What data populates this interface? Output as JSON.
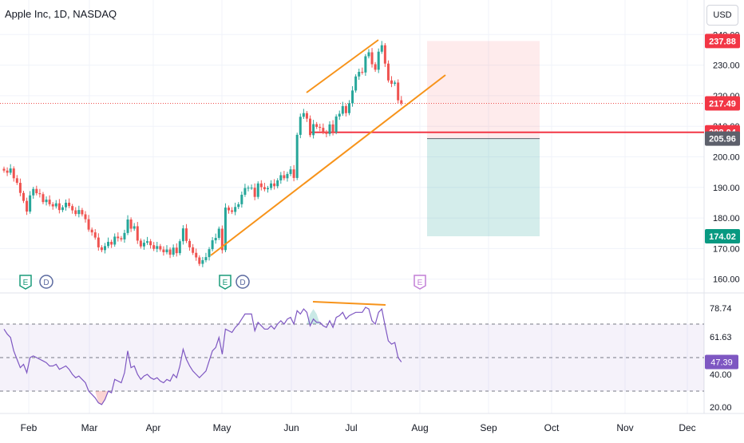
{
  "header": {
    "title": "Apple Inc, 1D, NASDAQ",
    "currency": "USD"
  },
  "colors": {
    "up": "#26a69a",
    "down": "#ef5350",
    "trend": "#f7931a",
    "rsi": "#7e57c2",
    "stop": "#f23645",
    "entry": "#f23645",
    "target_zone": "#26a69a",
    "stop_zone": "#f23645"
  },
  "chart_data": [
    {
      "type": "candlestick",
      "title": "Apple Inc, 1D, NASDAQ",
      "x_tick_labels": [
        "Feb",
        "Mar",
        "Apr",
        "May",
        "Jun",
        "Jul",
        "Aug",
        "Sep",
        "Oct",
        "Nov",
        "Dec"
      ],
      "y_tick_labels": [
        "160.00",
        "170.00",
        "180.00",
        "190.00",
        "200.00",
        "210.00",
        "220.00",
        "230.00",
        "240.00"
      ],
      "ylim": [
        155,
        242
      ],
      "closes": [
        195.5,
        194.8,
        196.2,
        193.0,
        191.5,
        188.2,
        185.6,
        182.1,
        187.4,
        189.5,
        188.1,
        187.8,
        185.2,
        186.0,
        184.5,
        183.8,
        184.8,
        182.6,
        183.5,
        185.0,
        183.9,
        182.5,
        181.3,
        182.6,
        181.2,
        179.6,
        176.2,
        175.3,
        173.6,
        170.4,
        169.5,
        170.8,
        172.2,
        171.3,
        173.9,
        173.4,
        173.0,
        175.1,
        179.5,
        176.5,
        177.3,
        172.6,
        170.7,
        171.9,
        172.4,
        171.1,
        169.9,
        170.8,
        169.7,
        168.8,
        169.7,
        168.0,
        170.3,
        168.5,
        172.4,
        176.6,
        172.5,
        170.4,
        168.6,
        167.1,
        165.0,
        166.2,
        167.2,
        169.8,
        172.7,
        173.5,
        176.5,
        169.5,
        183.4,
        182.5,
        182.0,
        183.6,
        184.5,
        187.6,
        189.8,
        189.9,
        189.9,
        186.9,
        191.3,
        190.1,
        189.4,
        189.8,
        191.3,
        190.4,
        192.3,
        194.0,
        193.0,
        194.4,
        195.9,
        193.1,
        207.2,
        213.1,
        214.3,
        212.5,
        207.1,
        210.7,
        209.8,
        209.5,
        208.1,
        207.5,
        210.6,
        208.1,
        213.2,
        214.1,
        216.6,
        214.3,
        217.5,
        221.7,
        226.3,
        227.8,
        227.6,
        232.9,
        234.2,
        230.3,
        228.5,
        234.4,
        236.5,
        230.5,
        225.0,
        223.9,
        224.3,
        218.5,
        217.5
      ],
      "rsi": {
        "levels": [
          70,
          50,
          30
        ],
        "y_tick_labels": [
          "78.74",
          "61.63",
          "40.00",
          "20.00"
        ],
        "current": "47.39"
      },
      "price_labels": [
        {
          "value": 237.88,
          "label": "237.88",
          "kind": "target_top"
        },
        {
          "value": 217.49,
          "label": "217.49",
          "kind": "last_price"
        },
        {
          "value": 208.04,
          "label": "208.04",
          "kind": "horizontal_line"
        },
        {
          "value": 205.96,
          "label": "205.96",
          "kind": "entry"
        },
        {
          "value": 174.02,
          "label": "174.02",
          "kind": "target"
        }
      ],
      "events": [
        {
          "label": "E",
          "kind": "earnings",
          "month": "Feb"
        },
        {
          "label": "D",
          "kind": "dividend",
          "month": "Feb"
        },
        {
          "label": "E",
          "kind": "earnings",
          "month": "May"
        },
        {
          "label": "D",
          "kind": "dividend",
          "month": "May"
        },
        {
          "label": "E",
          "kind": "earnings_upcoming",
          "month": "Aug"
        }
      ]
    }
  ]
}
